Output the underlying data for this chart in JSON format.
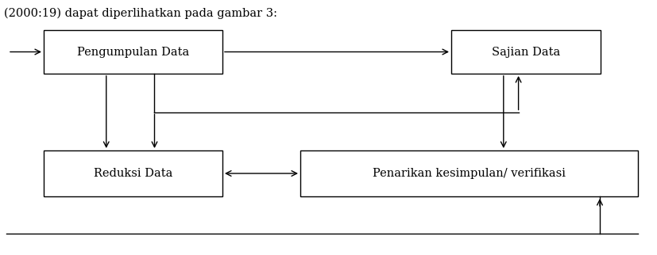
{
  "title_text": "(2000:19) dapat diperlihatkan pada gambar 3:",
  "label_pengumpulan": "Pengumpulan Data",
  "label_sajian": "Sajian Data",
  "label_reduksi": "Reduksi Data",
  "label_penarikan": "Penarikan kesimpulan/ verifikasi",
  "bg_color": "#ffffff",
  "box_edge_color": "#000000",
  "arrow_color": "#000000",
  "font_size": 10.5,
  "title_font_size": 10.5
}
